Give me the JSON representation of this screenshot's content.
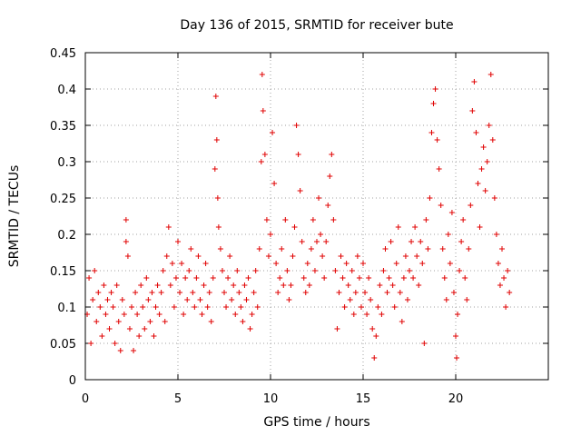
{
  "chart_data": {
    "type": "scatter",
    "title": "Day 136 of 2015, SRMTID for receiver bute",
    "xlabel": "GPS time / hours",
    "ylabel": "SRMTID / TECUs",
    "xlim": [
      0,
      25
    ],
    "ylim": [
      0,
      0.45
    ],
    "xticks": [
      0,
      5,
      10,
      15,
      20
    ],
    "xtick_labels": [
      "0",
      "5",
      "10",
      "15",
      "20"
    ],
    "yticks": [
      0,
      0.05,
      0.1,
      0.15,
      0.2,
      0.25,
      0.3,
      0.35,
      0.4,
      0.45
    ],
    "ytick_labels": [
      "0",
      "0.05",
      "0.1",
      "0.15",
      "0.2",
      "0.25",
      "0.3",
      "0.35",
      "0.4",
      "0.45"
    ],
    "grid": true,
    "marker": "plus",
    "marker_color": "#e00000",
    "series": [
      {
        "name": "SRMTID",
        "points": [
          [
            0.1,
            0.09
          ],
          [
            0.2,
            0.14
          ],
          [
            0.3,
            0.05
          ],
          [
            0.4,
            0.11
          ],
          [
            0.5,
            0.15
          ],
          [
            0.6,
            0.08
          ],
          [
            0.7,
            0.12
          ],
          [
            0.8,
            0.1
          ],
          [
            0.9,
            0.06
          ],
          [
            1.0,
            0.13
          ],
          [
            1.1,
            0.09
          ],
          [
            1.2,
            0.11
          ],
          [
            1.3,
            0.07
          ],
          [
            1.4,
            0.12
          ],
          [
            1.5,
            0.1
          ],
          [
            1.6,
            0.05
          ],
          [
            1.7,
            0.13
          ],
          [
            1.8,
            0.08
          ],
          [
            1.9,
            0.04
          ],
          [
            2.0,
            0.11
          ],
          [
            2.1,
            0.09
          ],
          [
            2.2,
            0.22
          ],
          [
            2.2,
            0.19
          ],
          [
            2.3,
            0.17
          ],
          [
            2.4,
            0.07
          ],
          [
            2.5,
            0.1
          ],
          [
            2.6,
            0.04
          ],
          [
            2.7,
            0.12
          ],
          [
            2.8,
            0.09
          ],
          [
            2.9,
            0.06
          ],
          [
            3.0,
            0.13
          ],
          [
            3.1,
            0.1
          ],
          [
            3.2,
            0.07
          ],
          [
            3.3,
            0.14
          ],
          [
            3.4,
            0.11
          ],
          [
            3.5,
            0.08
          ],
          [
            3.6,
            0.12
          ],
          [
            3.7,
            0.06
          ],
          [
            3.8,
            0.1
          ],
          [
            3.9,
            0.13
          ],
          [
            4.0,
            0.09
          ],
          [
            4.1,
            0.12
          ],
          [
            4.2,
            0.15
          ],
          [
            4.3,
            0.08
          ],
          [
            4.4,
            0.17
          ],
          [
            4.5,
            0.21
          ],
          [
            4.6,
            0.13
          ],
          [
            4.7,
            0.16
          ],
          [
            4.8,
            0.1
          ],
          [
            4.9,
            0.14
          ],
          [
            5.0,
            0.19
          ],
          [
            5.1,
            0.12
          ],
          [
            5.2,
            0.16
          ],
          [
            5.3,
            0.09
          ],
          [
            5.4,
            0.14
          ],
          [
            5.5,
            0.11
          ],
          [
            5.6,
            0.15
          ],
          [
            5.7,
            0.18
          ],
          [
            5.8,
            0.12
          ],
          [
            5.9,
            0.1
          ],
          [
            6.0,
            0.14
          ],
          [
            6.1,
            0.17
          ],
          [
            6.2,
            0.11
          ],
          [
            6.3,
            0.09
          ],
          [
            6.4,
            0.13
          ],
          [
            6.5,
            0.16
          ],
          [
            6.6,
            0.1
          ],
          [
            6.7,
            0.12
          ],
          [
            6.8,
            0.08
          ],
          [
            6.9,
            0.14
          ],
          [
            7.0,
            0.29
          ],
          [
            7.05,
            0.39
          ],
          [
            7.1,
            0.33
          ],
          [
            7.15,
            0.25
          ],
          [
            7.2,
            0.21
          ],
          [
            7.3,
            0.18
          ],
          [
            7.4,
            0.15
          ],
          [
            7.5,
            0.12
          ],
          [
            7.6,
            0.1
          ],
          [
            7.7,
            0.14
          ],
          [
            7.8,
            0.17
          ],
          [
            7.9,
            0.11
          ],
          [
            8.0,
            0.13
          ],
          [
            8.1,
            0.09
          ],
          [
            8.2,
            0.15
          ],
          [
            8.3,
            0.12
          ],
          [
            8.4,
            0.1
          ],
          [
            8.5,
            0.08
          ],
          [
            8.6,
            0.13
          ],
          [
            8.7,
            0.11
          ],
          [
            8.8,
            0.14
          ],
          [
            8.9,
            0.07
          ],
          [
            9.0,
            0.09
          ],
          [
            9.1,
            0.12
          ],
          [
            9.2,
            0.15
          ],
          [
            9.3,
            0.1
          ],
          [
            9.4,
            0.18
          ],
          [
            9.5,
            0.3
          ],
          [
            9.55,
            0.42
          ],
          [
            9.6,
            0.37
          ],
          [
            9.7,
            0.31
          ],
          [
            9.8,
            0.22
          ],
          [
            9.9,
            0.17
          ],
          [
            10.0,
            0.2
          ],
          [
            10.1,
            0.34
          ],
          [
            10.2,
            0.27
          ],
          [
            10.3,
            0.16
          ],
          [
            10.4,
            0.12
          ],
          [
            10.5,
            0.14
          ],
          [
            10.6,
            0.18
          ],
          [
            10.7,
            0.13
          ],
          [
            10.8,
            0.22
          ],
          [
            10.9,
            0.15
          ],
          [
            11.0,
            0.11
          ],
          [
            11.1,
            0.13
          ],
          [
            11.2,
            0.17
          ],
          [
            11.3,
            0.21
          ],
          [
            11.4,
            0.35
          ],
          [
            11.5,
            0.31
          ],
          [
            11.6,
            0.26
          ],
          [
            11.7,
            0.19
          ],
          [
            11.8,
            0.14
          ],
          [
            11.9,
            0.12
          ],
          [
            12.0,
            0.16
          ],
          [
            12.1,
            0.13
          ],
          [
            12.2,
            0.18
          ],
          [
            12.3,
            0.22
          ],
          [
            12.4,
            0.15
          ],
          [
            12.5,
            0.19
          ],
          [
            12.6,
            0.25
          ],
          [
            12.7,
            0.2
          ],
          [
            12.8,
            0.17
          ],
          [
            12.9,
            0.14
          ],
          [
            13.0,
            0.19
          ],
          [
            13.1,
            0.24
          ],
          [
            13.2,
            0.28
          ],
          [
            13.3,
            0.31
          ],
          [
            13.4,
            0.22
          ],
          [
            13.5,
            0.15
          ],
          [
            13.6,
            0.07
          ],
          [
            13.7,
            0.12
          ],
          [
            13.8,
            0.17
          ],
          [
            13.9,
            0.14
          ],
          [
            14.0,
            0.1
          ],
          [
            14.1,
            0.16
          ],
          [
            14.2,
            0.13
          ],
          [
            14.3,
            0.11
          ],
          [
            14.4,
            0.15
          ],
          [
            14.5,
            0.09
          ],
          [
            14.6,
            0.12
          ],
          [
            14.7,
            0.17
          ],
          [
            14.8,
            0.14
          ],
          [
            14.9,
            0.1
          ],
          [
            15.0,
            0.16
          ],
          [
            15.1,
            0.12
          ],
          [
            15.2,
            0.09
          ],
          [
            15.3,
            0.14
          ],
          [
            15.4,
            0.11
          ],
          [
            15.5,
            0.07
          ],
          [
            15.6,
            0.03
          ],
          [
            15.7,
            0.06
          ],
          [
            15.8,
            0.1
          ],
          [
            15.9,
            0.13
          ],
          [
            16.0,
            0.09
          ],
          [
            16.1,
            0.15
          ],
          [
            16.2,
            0.18
          ],
          [
            16.3,
            0.12
          ],
          [
            16.4,
            0.14
          ],
          [
            16.5,
            0.19
          ],
          [
            16.6,
            0.13
          ],
          [
            16.7,
            0.1
          ],
          [
            16.8,
            0.16
          ],
          [
            16.9,
            0.21
          ],
          [
            17.0,
            0.12
          ],
          [
            17.1,
            0.08
          ],
          [
            17.2,
            0.14
          ],
          [
            17.3,
            0.17
          ],
          [
            17.4,
            0.11
          ],
          [
            17.5,
            0.15
          ],
          [
            17.6,
            0.19
          ],
          [
            17.7,
            0.14
          ],
          [
            17.8,
            0.21
          ],
          [
            17.9,
            0.17
          ],
          [
            18.0,
            0.13
          ],
          [
            18.1,
            0.19
          ],
          [
            18.2,
            0.16
          ],
          [
            18.3,
            0.05
          ],
          [
            18.4,
            0.22
          ],
          [
            18.5,
            0.18
          ],
          [
            18.6,
            0.25
          ],
          [
            18.7,
            0.34
          ],
          [
            18.8,
            0.38
          ],
          [
            18.9,
            0.4
          ],
          [
            19.0,
            0.33
          ],
          [
            19.1,
            0.29
          ],
          [
            19.2,
            0.24
          ],
          [
            19.3,
            0.18
          ],
          [
            19.4,
            0.14
          ],
          [
            19.5,
            0.11
          ],
          [
            19.6,
            0.2
          ],
          [
            19.7,
            0.16
          ],
          [
            19.8,
            0.23
          ],
          [
            19.9,
            0.12
          ],
          [
            20.0,
            0.06
          ],
          [
            20.05,
            0.03
          ],
          [
            20.1,
            0.09
          ],
          [
            20.2,
            0.15
          ],
          [
            20.3,
            0.19
          ],
          [
            20.4,
            0.22
          ],
          [
            20.5,
            0.14
          ],
          [
            20.6,
            0.11
          ],
          [
            20.7,
            0.18
          ],
          [
            20.8,
            0.24
          ],
          [
            20.9,
            0.37
          ],
          [
            21.0,
            0.41
          ],
          [
            21.1,
            0.34
          ],
          [
            21.2,
            0.27
          ],
          [
            21.3,
            0.21
          ],
          [
            21.4,
            0.29
          ],
          [
            21.5,
            0.32
          ],
          [
            21.6,
            0.26
          ],
          [
            21.7,
            0.3
          ],
          [
            21.8,
            0.35
          ],
          [
            21.9,
            0.42
          ],
          [
            22.0,
            0.33
          ],
          [
            22.1,
            0.25
          ],
          [
            22.2,
            0.2
          ],
          [
            22.3,
            0.16
          ],
          [
            22.4,
            0.13
          ],
          [
            22.5,
            0.18
          ],
          [
            22.6,
            0.14
          ],
          [
            22.7,
            0.1
          ],
          [
            22.8,
            0.15
          ],
          [
            22.9,
            0.12
          ]
        ]
      }
    ]
  }
}
